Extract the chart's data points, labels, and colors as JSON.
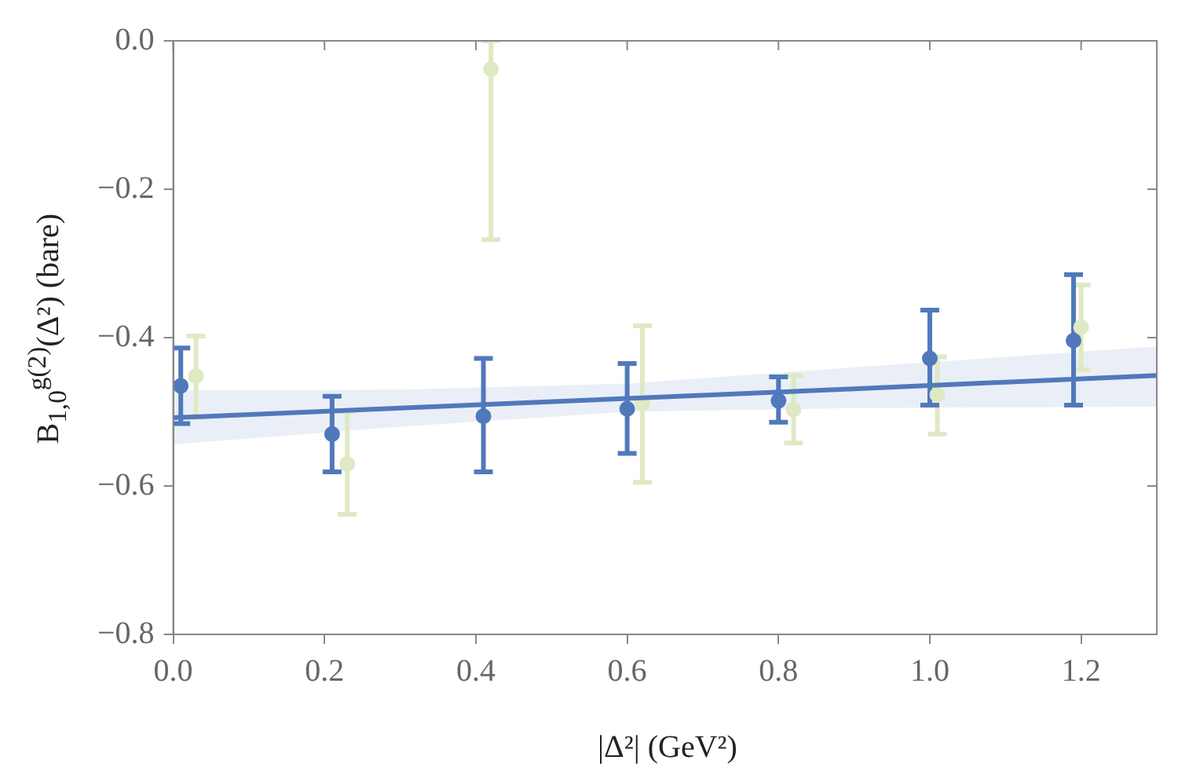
{
  "chart_data": {
    "type": "scatter",
    "xlabel": "|Δ²| (GeV²)",
    "ylabel": "B$_{1,0}$$^{g(2)}$(Δ²) (bare)",
    "xlim": [
      0,
      1.3
    ],
    "ylim": [
      -0.8,
      0
    ],
    "xticks": [
      {
        "value": 0,
        "label": "0.0"
      },
      {
        "value": 0.2,
        "label": "0.2"
      },
      {
        "value": 0.4,
        "label": "0.4"
      },
      {
        "value": 0.6,
        "label": "0.6"
      },
      {
        "value": 0.8,
        "label": "0.8"
      },
      {
        "value": 1,
        "label": "1.0"
      },
      {
        "value": 1.2,
        "label": "1.2"
      }
    ],
    "yticks": [
      {
        "value": -0.8,
        "label": "−0.8"
      },
      {
        "value": -0.6,
        "label": "−0.6"
      },
      {
        "value": -0.4,
        "label": "−0.4"
      },
      {
        "value": -0.2,
        "label": "−0.2"
      },
      {
        "value": 0,
        "label": "0.0"
      }
    ],
    "grid": false,
    "marker": "circle",
    "series": [
      {
        "color": "#dfe9c4",
        "x": [
          0.03,
          0.23,
          0.42,
          0.62,
          0.82,
          1.01,
          1.2
        ],
        "values": [
          -0.452,
          -0.57,
          -0.038,
          -0.489,
          -0.497,
          -0.477,
          -0.386
        ],
        "errors": [
          [
            -0.508,
            -0.398
          ],
          [
            -0.638,
            -0.5
          ],
          [
            -0.268,
            0
          ],
          [
            -0.595,
            -0.384
          ],
          [
            -0.542,
            -0.451
          ],
          [
            -0.53,
            -0.426
          ],
          [
            -0.443,
            -0.329
          ]
        ]
      },
      {
        "color": "#5079bb",
        "x": [
          0.01,
          0.21,
          0.41,
          0.6,
          0.8,
          1.0,
          1.19
        ],
        "values": [
          -0.465,
          -0.53,
          -0.506,
          -0.496,
          -0.485,
          -0.428,
          -0.404
        ],
        "errors": [
          [
            -0.516,
            -0.414
          ],
          [
            -0.581,
            -0.479
          ],
          [
            -0.581,
            -0.428
          ],
          [
            -0.556,
            -0.435
          ],
          [
            -0.514,
            -0.453
          ],
          [
            -0.491,
            -0.363
          ],
          [
            -0.491,
            -0.315
          ]
        ]
      },
      {
        "type": "line",
        "marker": "none",
        "color": "#5079bb",
        "x": [
          0,
          0.3,
          0.6,
          0.9,
          1.3
        ],
        "values": [
          -0.508,
          -0.495,
          -0.482,
          -0.469,
          -0.451
        ],
        "lower": [
          -0.544,
          -0.52,
          -0.5,
          -0.495,
          -0.493
        ],
        "upper": [
          -0.471,
          -0.47,
          -0.462,
          -0.44,
          -0.412
        ]
      }
    ]
  }
}
